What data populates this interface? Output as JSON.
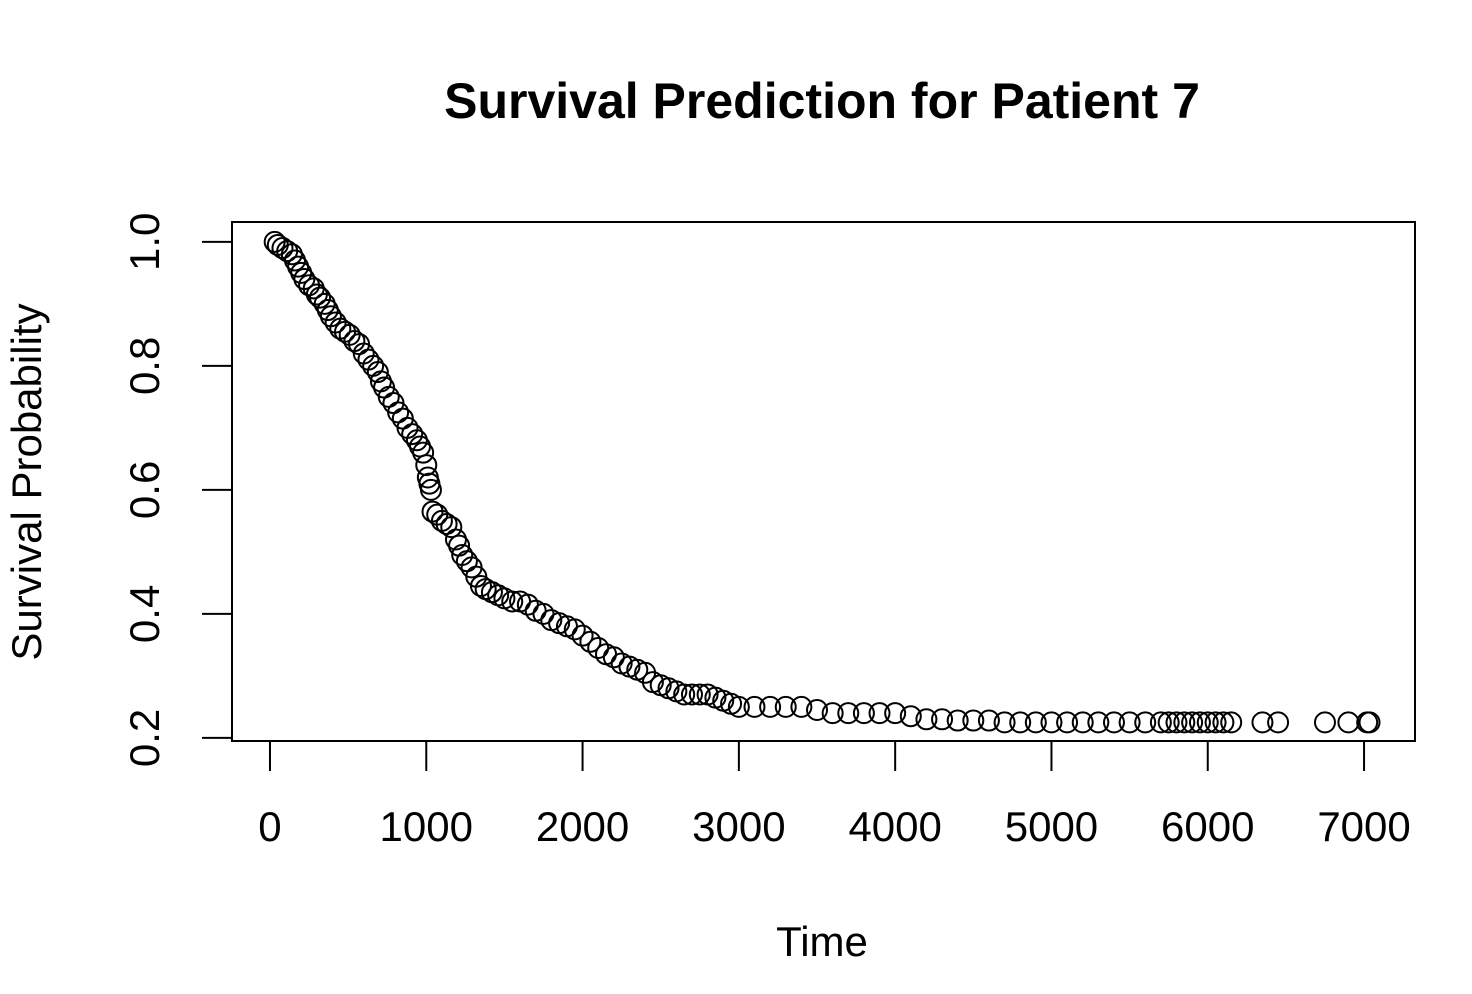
{
  "chart_data": {
    "type": "scatter",
    "title": "Survival Prediction for Patient 7",
    "x_label": "Time",
    "y_label": "Survival Probability",
    "x": [
      30,
      50,
      80,
      110,
      140,
      160,
      180,
      200,
      220,
      250,
      280,
      300,
      320,
      350,
      370,
      390,
      420,
      450,
      480,
      510,
      540,
      570,
      600,
      630,
      660,
      690,
      710,
      730,
      760,
      790,
      820,
      850,
      880,
      910,
      940,
      960,
      980,
      1000,
      1010,
      1020,
      1030,
      1040,
      1070,
      1100,
      1130,
      1160,
      1190,
      1210,
      1230,
      1260,
      1290,
      1320,
      1350,
      1380,
      1420,
      1460,
      1500,
      1550,
      1600,
      1650,
      1700,
      1750,
      1800,
      1850,
      1900,
      1950,
      2000,
      2050,
      2100,
      2150,
      2200,
      2250,
      2300,
      2350,
      2400,
      2450,
      2500,
      2550,
      2600,
      2650,
      2700,
      2750,
      2800,
      2850,
      2900,
      2950,
      3000,
      3100,
      3200,
      3300,
      3400,
      3500,
      3600,
      3700,
      3800,
      3900,
      4000,
      4100,
      4200,
      4300,
      4400,
      4500,
      4600,
      4700,
      4800,
      4900,
      5000,
      5100,
      5200,
      5300,
      5400,
      5500,
      5600,
      5700,
      5750,
      5800,
      5850,
      5900,
      5950,
      6000,
      6050,
      6100,
      6150,
      6350,
      6450,
      6750,
      6900,
      7020,
      7035
    ],
    "values": [
      1.0,
      0.995,
      0.99,
      0.985,
      0.98,
      0.97,
      0.96,
      0.95,
      0.94,
      0.93,
      0.925,
      0.915,
      0.91,
      0.9,
      0.89,
      0.88,
      0.87,
      0.86,
      0.855,
      0.85,
      0.84,
      0.835,
      0.82,
      0.81,
      0.8,
      0.79,
      0.775,
      0.765,
      0.75,
      0.74,
      0.725,
      0.715,
      0.7,
      0.69,
      0.68,
      0.67,
      0.66,
      0.64,
      0.62,
      0.61,
      0.6,
      0.565,
      0.56,
      0.55,
      0.545,
      0.54,
      0.52,
      0.51,
      0.495,
      0.485,
      0.475,
      0.46,
      0.445,
      0.44,
      0.435,
      0.43,
      0.425,
      0.42,
      0.42,
      0.415,
      0.405,
      0.4,
      0.39,
      0.385,
      0.38,
      0.375,
      0.365,
      0.355,
      0.345,
      0.335,
      0.33,
      0.32,
      0.315,
      0.31,
      0.305,
      0.29,
      0.285,
      0.28,
      0.275,
      0.27,
      0.27,
      0.27,
      0.27,
      0.265,
      0.26,
      0.255,
      0.25,
      0.25,
      0.25,
      0.25,
      0.25,
      0.245,
      0.24,
      0.24,
      0.24,
      0.24,
      0.24,
      0.235,
      0.23,
      0.23,
      0.228,
      0.228,
      0.228,
      0.225,
      0.225,
      0.225,
      0.225,
      0.225,
      0.225,
      0.225,
      0.225,
      0.225,
      0.225,
      0.225,
      0.225,
      0.225,
      0.225,
      0.225,
      0.225,
      0.225,
      0.225,
      0.225,
      0.225,
      0.225,
      0.225,
      0.225,
      0.225,
      0.225,
      0.225
    ],
    "color": "#000000",
    "xlim": [
      -243,
      7326
    ],
    "ylim": [
      0.195,
      1.032
    ],
    "xticks": [
      0,
      1000,
      2000,
      3000,
      4000,
      5000,
      6000,
      7000
    ],
    "yticks": [
      0.2,
      0.4,
      0.6,
      0.8,
      {
        "value": 1,
        "label": "1.0"
      }
    ]
  }
}
